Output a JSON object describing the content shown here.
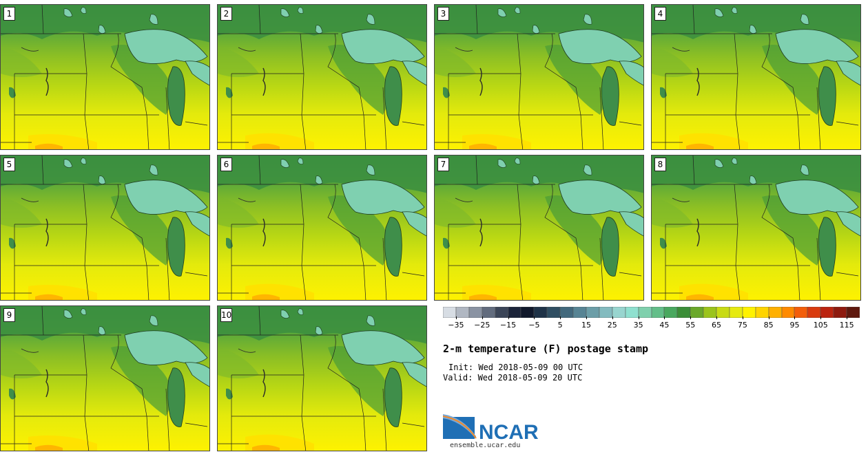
{
  "figure": {
    "title": "2-m temperature (F) postage stamp",
    "init": "Init: Wed 2018-05-09 00 UTC",
    "valid": "Valid: Wed 2018-05-09 20 UTC",
    "source_url": "ensemble.ucar.edu",
    "logo_text": "NCAR"
  },
  "members": [
    "1",
    "2",
    "3",
    "4",
    "5",
    "6",
    "7",
    "8",
    "9",
    "10"
  ],
  "colorbar": {
    "tick_labels": [
      "−35",
      "−25",
      "−15",
      "−5",
      "5",
      "15",
      "25",
      "35",
      "45",
      "55",
      "65",
      "75",
      "85",
      "95",
      "105",
      "115"
    ],
    "tick_values": [
      -35,
      -25,
      -15,
      -5,
      5,
      15,
      25,
      35,
      45,
      55,
      65,
      75,
      85,
      95,
      105,
      115
    ],
    "min": -40,
    "max": 120,
    "colors": [
      "#d7dde4",
      "#b0b7c2",
      "#8a93a3",
      "#626c7e",
      "#3b4558",
      "#1b243a",
      "#11192c",
      "#1f3348",
      "#2f4e62",
      "#42697d",
      "#578494",
      "#6c9ea8",
      "#83bbbf",
      "#98d5cf",
      "#8fe0cf",
      "#7fd0ad",
      "#63be89",
      "#49a85f",
      "#3b8e38",
      "#6aa82a",
      "#9bc41c",
      "#c8db14",
      "#e6ea10",
      "#fff200",
      "#ffd400",
      "#ffb000",
      "#ff8a00",
      "#f35e0a",
      "#d93b0e",
      "#bb2410",
      "#8e1a0f",
      "#5e180e"
    ]
  }
}
